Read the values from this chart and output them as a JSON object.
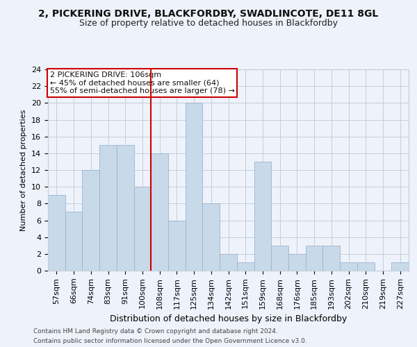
{
  "title1": "2, PICKERING DRIVE, BLACKFORDBY, SWADLINCOTE, DE11 8GL",
  "title2": "Size of property relative to detached houses in Blackfordby",
  "xlabel": "Distribution of detached houses by size in Blackfordby",
  "ylabel": "Number of detached properties",
  "bar_labels": [
    "57sqm",
    "66sqm",
    "74sqm",
    "83sqm",
    "91sqm",
    "100sqm",
    "108sqm",
    "117sqm",
    "125sqm",
    "134sqm",
    "142sqm",
    "151sqm",
    "159sqm",
    "168sqm",
    "176sqm",
    "185sqm",
    "193sqm",
    "202sqm",
    "210sqm",
    "219sqm",
    "227sqm"
  ],
  "bar_values": [
    9,
    7,
    12,
    15,
    15,
    10,
    14,
    6,
    20,
    8,
    2,
    1,
    13,
    3,
    2,
    3,
    3,
    1,
    1,
    0,
    1
  ],
  "bar_color": "#c8d9ea",
  "bar_edgecolor": "#9ab5cc",
  "vline_x": 5.5,
  "vline_color": "#cc0000",
  "annotation_lines": [
    "2 PICKERING DRIVE: 106sqm",
    "← 45% of detached houses are smaller (64)",
    "55% of semi-detached houses are larger (78) →"
  ],
  "annotation_box_color": "#ffffff",
  "annotation_box_edgecolor": "#cc0000",
  "ylim": [
    0,
    24
  ],
  "yticks": [
    0,
    2,
    4,
    6,
    8,
    10,
    12,
    14,
    16,
    18,
    20,
    22,
    24
  ],
  "footer1": "Contains HM Land Registry data © Crown copyright and database right 2024.",
  "footer2": "Contains public sector information licensed under the Open Government Licence v3.0.",
  "bg_color": "#eef2fa",
  "grid_color": "#c5cdd8",
  "title1_fontsize": 10,
  "title2_fontsize": 9,
  "xlabel_fontsize": 9,
  "ylabel_fontsize": 8,
  "tick_fontsize": 8,
  "annotation_fontsize": 8,
  "footer_fontsize": 6.5
}
